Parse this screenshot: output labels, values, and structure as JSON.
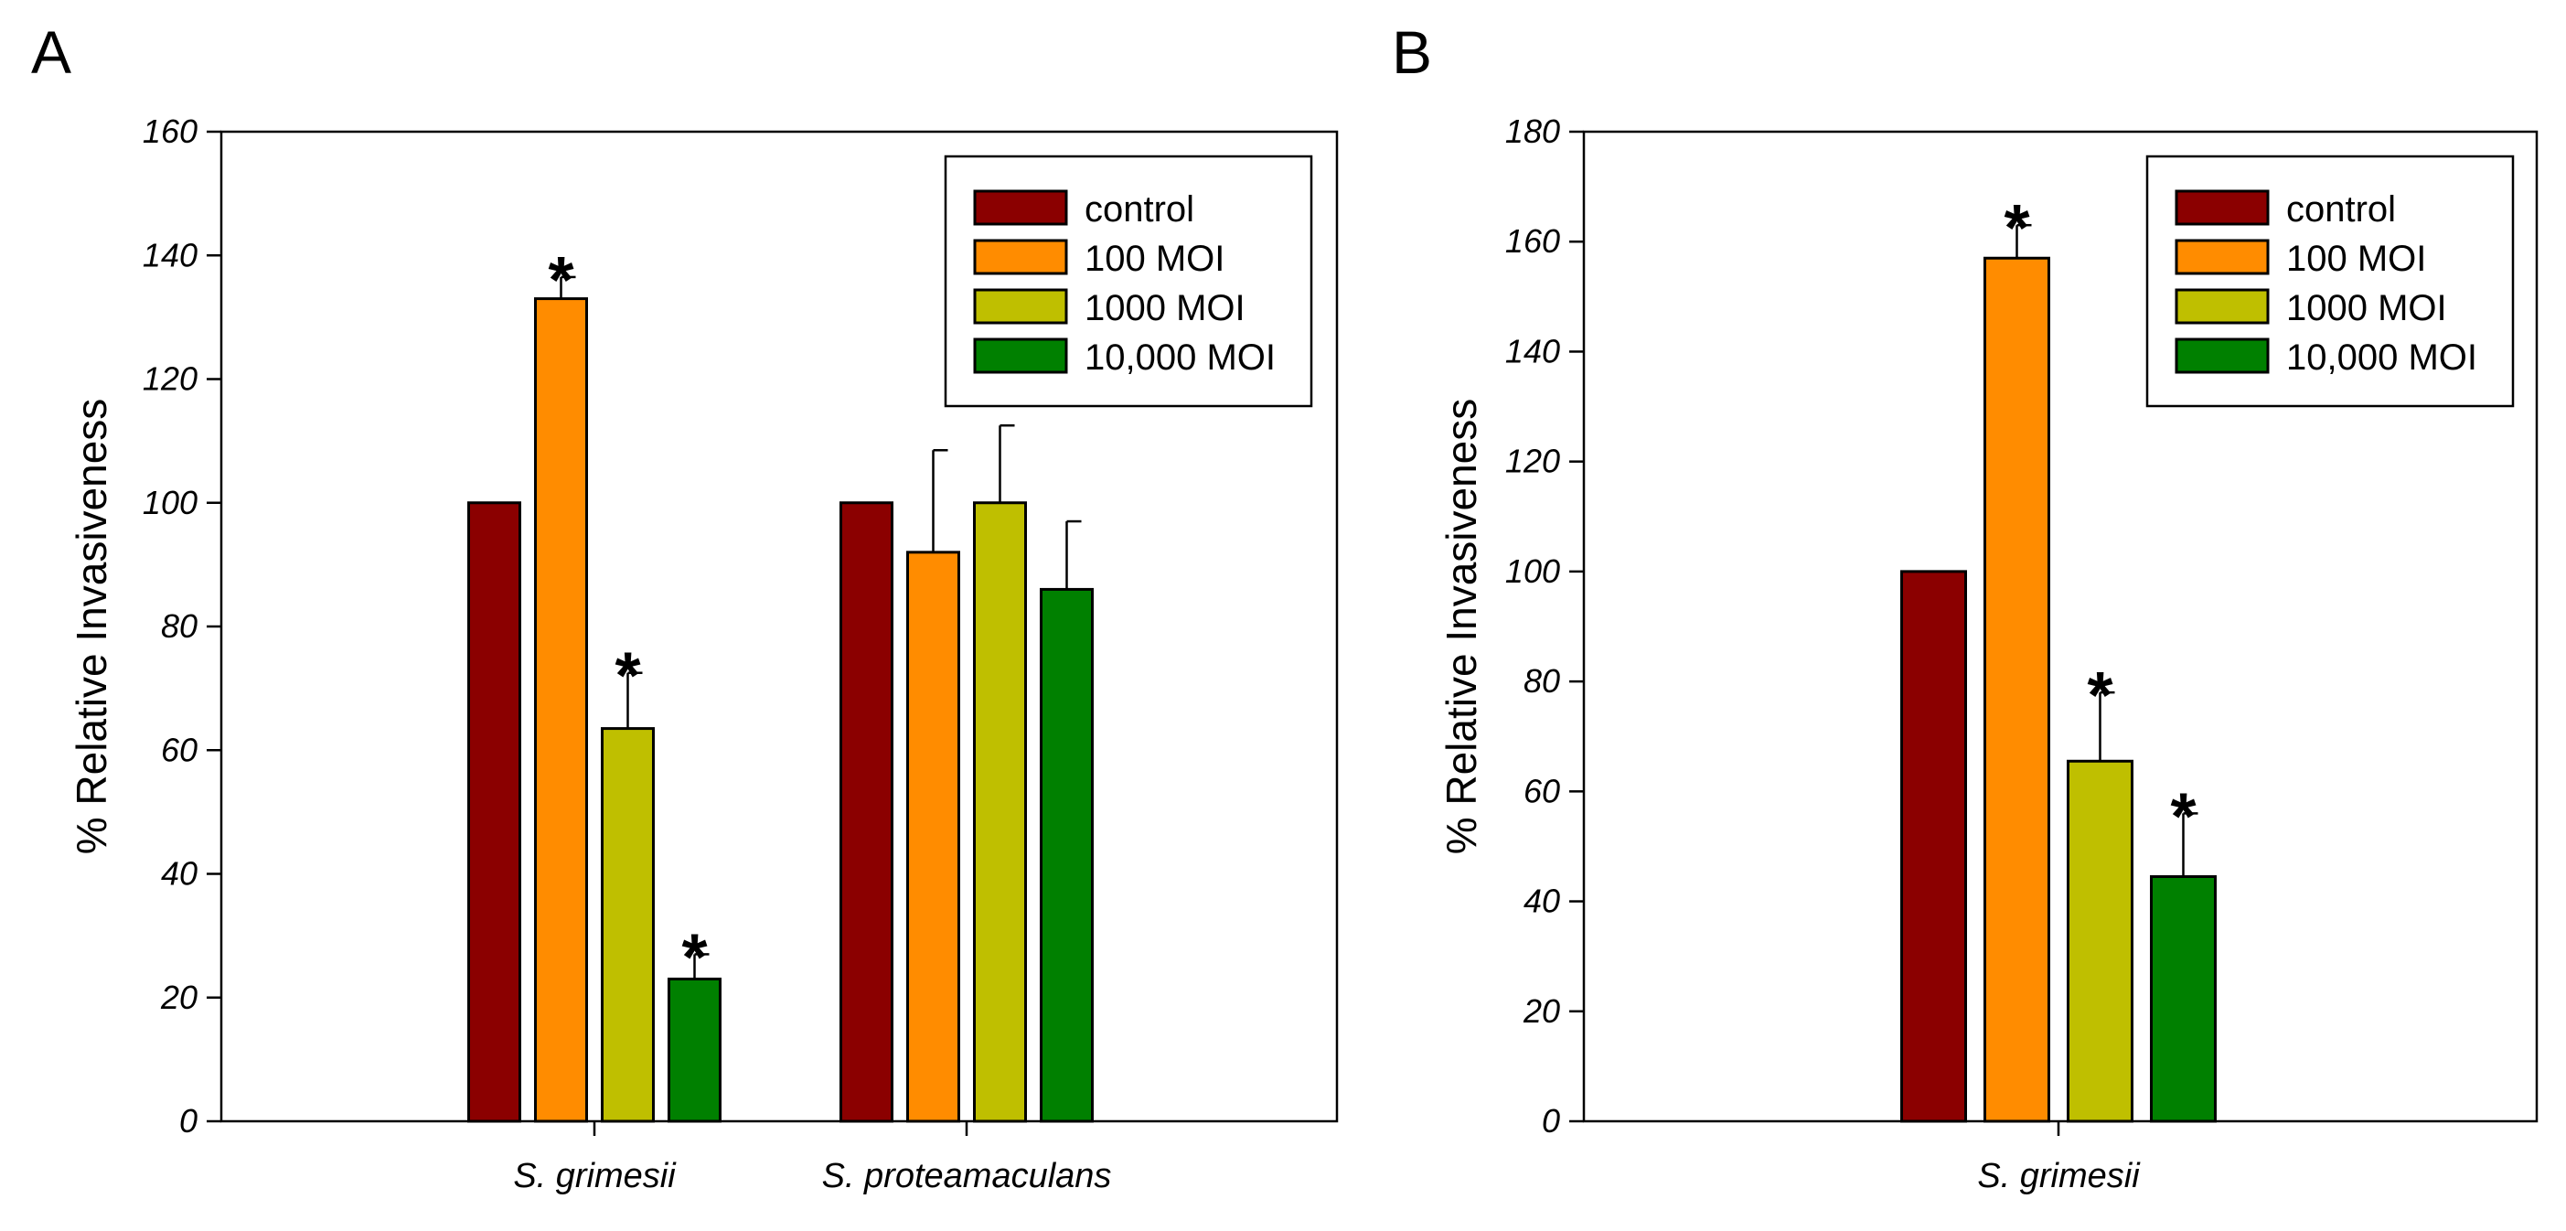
{
  "chart_data": [
    {
      "panel": "A",
      "type": "bar",
      "ylabel": "% Relative Invasiveness",
      "xlabel": "",
      "ylim": [
        0,
        160
      ],
      "yticks": [
        "0",
        "20",
        "40",
        "60",
        "80",
        "100",
        "120",
        "140",
        "160"
      ],
      "categories": [
        "S. grimesii",
        "S. proteamaculans"
      ],
      "series": [
        {
          "name": "control",
          "color": "#8B0000",
          "values": [
            100,
            100
          ],
          "errors": [
            0,
            0
          ],
          "significant": [
            false,
            false
          ]
        },
        {
          "name": "100 MOI",
          "color": "#FF8C00",
          "values": [
            133,
            92
          ],
          "errors": [
            3.5,
            16.5
          ],
          "significant": [
            true,
            false
          ]
        },
        {
          "name": "1000 MOI",
          "color": "#BFBF00",
          "values": [
            63.5,
            100
          ],
          "errors": [
            9,
            12.5
          ],
          "significant": [
            true,
            false
          ]
        },
        {
          "name": "10,000 MOI",
          "color": "#008000",
          "values": [
            23,
            86
          ],
          "errors": [
            4,
            11
          ],
          "significant": [
            true,
            false
          ]
        }
      ],
      "significance_marker": "*",
      "legend": "top-right",
      "grid": false
    },
    {
      "panel": "B",
      "type": "bar",
      "ylabel": "% Relative Invasiveness",
      "xlabel": "",
      "ylim": [
        0,
        180
      ],
      "yticks": [
        "0",
        "20",
        "40",
        "60",
        "80",
        "100",
        "120",
        "140",
        "160",
        "180"
      ],
      "categories": [
        "S. grimesii"
      ],
      "series": [
        {
          "name": "control",
          "color": "#8B0000",
          "values": [
            100
          ],
          "errors": [
            0
          ],
          "significant": [
            false
          ]
        },
        {
          "name": "100 MOI",
          "color": "#FF8C00",
          "values": [
            157
          ],
          "errors": [
            6
          ],
          "significant": [
            true
          ]
        },
        {
          "name": "1000 MOI",
          "color": "#BFBF00",
          "values": [
            65.5
          ],
          "errors": [
            12.5
          ],
          "significant": [
            true
          ]
        },
        {
          "name": "10,000 MOI",
          "color": "#008000",
          "values": [
            44.5
          ],
          "errors": [
            11.5
          ],
          "significant": [
            true
          ]
        }
      ],
      "significance_marker": "*",
      "legend": "top-right",
      "grid": false
    }
  ]
}
